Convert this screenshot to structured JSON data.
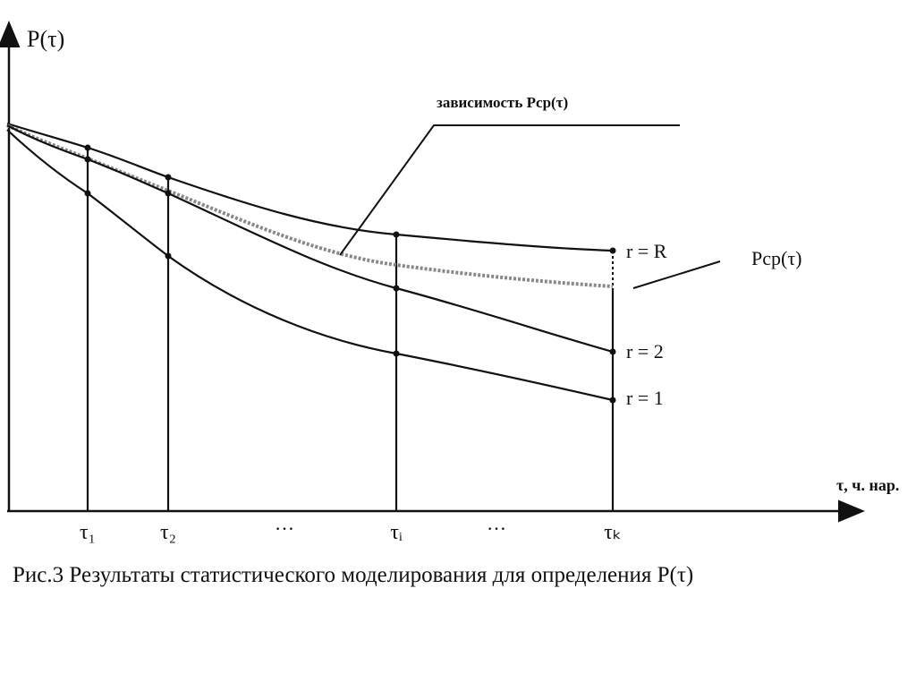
{
  "axes": {
    "y_label": "P(τ)",
    "x_label": "τ, ч. нар.",
    "x_ticks": [
      "τ₁",
      "τ₂",
      "…",
      "τᵢ",
      "…",
      "τₖ"
    ]
  },
  "annotations": [
    "зависимость  Pср(τ)",
    "r = R",
    "Pср(τ)",
    "r = 2",
    "r = 1"
  ],
  "caption": "Рис.3 Результаты статистического моделирования для определения P(τ)"
}
